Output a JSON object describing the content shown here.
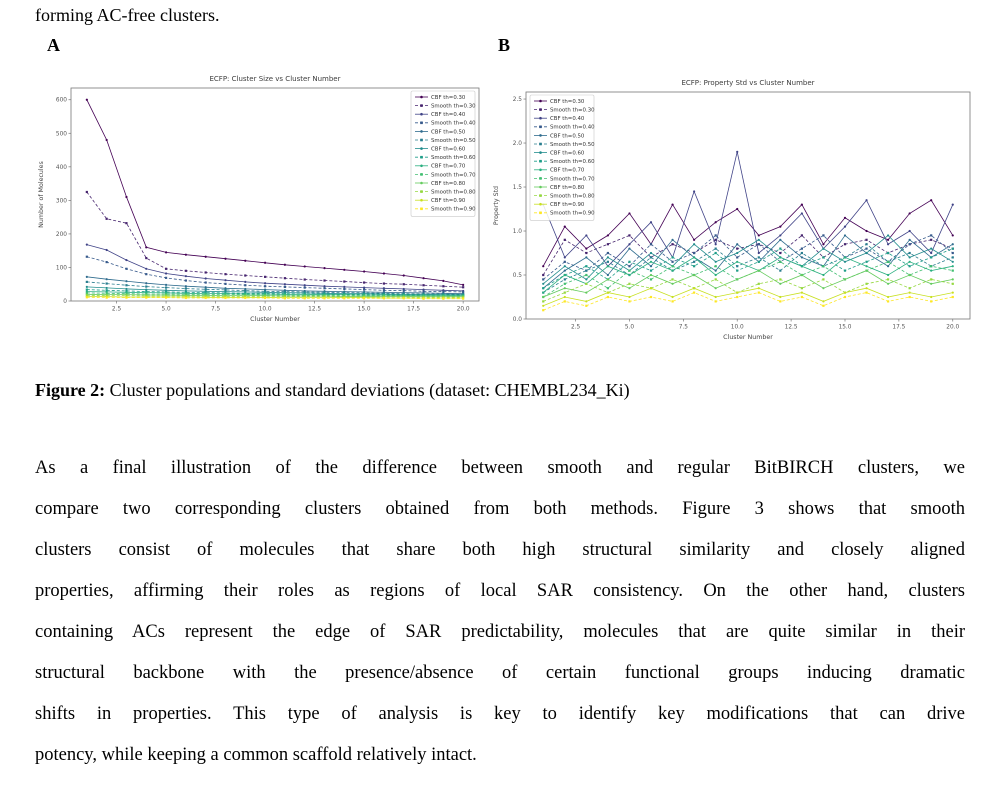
{
  "page": {
    "intro_line": "forming AC-free clusters.",
    "figure": {
      "panel_a_label": "A",
      "panel_b_label": "B",
      "caption_label": "Figure 2:",
      "caption_text": " Cluster populations and standard deviations (dataset: CHEMBL234_Ki)"
    },
    "paragraph_lines": [
      "As a final illustration of the difference between smooth and regular BitBIRCH clusters, we",
      "compare two corresponding clusters obtained from both methods. Figure 3 shows that smooth",
      "clusters consist of molecules that share both high structural similarity and closely aligned",
      "properties, affirming their roles as regions of local SAR consistency. On the other hand, clusters",
      "containing ACs represent the edge of SAR predictability, molecules that are quite similar in their",
      "structural backbone with the presence/absence of certain functional groups inducing dramatic",
      "shifts in properties. This type of analysis is key to identify key modifications that can drive",
      "potency, while keeping a common scaffold relatively intact."
    ]
  },
  "chart_data": [
    {
      "type": "line",
      "title": "ECFP: Cluster Size vs Cluster Number",
      "xlabel": "Cluster Number",
      "ylabel": "Number of Molecules",
      "x": [
        1,
        2,
        3,
        4,
        5,
        6,
        7,
        8,
        9,
        10,
        11,
        12,
        13,
        14,
        15,
        16,
        17,
        18,
        19,
        20
      ],
      "xlim": [
        0.2,
        20.8
      ],
      "ylim": [
        0,
        635
      ],
      "xticks": [
        2.5,
        5,
        7.5,
        10,
        12.5,
        15,
        17.5,
        20
      ],
      "xtick_labels": [
        "2.5",
        "5.0",
        "7.5",
        "10.0",
        "12.5",
        "15.0",
        "17.5",
        "20.0"
      ],
      "yticks": [
        0,
        100,
        200,
        300,
        400,
        500,
        600
      ],
      "ytick_labels": [
        "0",
        "100",
        "200",
        "300",
        "400",
        "500",
        "600"
      ],
      "grid": false,
      "legend_position": "upper-right",
      "series": [
        {
          "name": "CBF th=0.30",
          "color": "#440154",
          "style": "solid",
          "marker": "circle",
          "values": [
            600,
            480,
            310,
            160,
            145,
            138,
            132,
            126,
            120,
            114,
            108,
            103,
            98,
            93,
            88,
            82,
            76,
            68,
            60,
            48
          ]
        },
        {
          "name": "Smooth th=0.30",
          "color": "#46246e",
          "style": "dashed",
          "marker": "square",
          "values": [
            325,
            245,
            232,
            128,
            96,
            90,
            85,
            80,
            76,
            72,
            68,
            64,
            61,
            58,
            55,
            52,
            50,
            47,
            44,
            41
          ]
        },
        {
          "name": "CBF th=0.40",
          "color": "#404387",
          "style": "solid",
          "marker": "circle",
          "values": [
            168,
            152,
            122,
            96,
            82,
            74,
            67,
            62,
            57,
            53,
            50,
            47,
            44,
            42,
            40,
            38,
            36,
            34,
            32,
            30
          ]
        },
        {
          "name": "Smooth th=0.40",
          "color": "#375a8c",
          "style": "dashed",
          "marker": "square",
          "values": [
            132,
            116,
            96,
            80,
            69,
            61,
            55,
            51,
            47,
            44,
            42,
            40,
            38,
            36,
            34,
            32,
            31,
            29,
            28,
            27
          ]
        },
        {
          "name": "CBF th=0.50",
          "color": "#2f6c8e",
          "style": "solid",
          "marker": "circle",
          "values": [
            72,
            65,
            59,
            53,
            48,
            44,
            41,
            38,
            36,
            34,
            32,
            30,
            29,
            28,
            27,
            26,
            25,
            24,
            23,
            22
          ]
        },
        {
          "name": "Smooth th=0.50",
          "color": "#287d8e",
          "style": "dashed",
          "marker": "square",
          "values": [
            57,
            52,
            47,
            43,
            40,
            37,
            35,
            33,
            31,
            29,
            28,
            27,
            26,
            25,
            24,
            23,
            22,
            21,
            21,
            20
          ]
        },
        {
          "name": "CBF th=0.60",
          "color": "#228d8d",
          "style": "solid",
          "marker": "circle",
          "values": [
            42,
            39,
            36,
            34,
            32,
            30,
            29,
            28,
            27,
            26,
            25,
            24,
            23,
            22,
            22,
            21,
            20,
            20,
            19,
            19
          ]
        },
        {
          "name": "Smooth th=0.60",
          "color": "#1f9e89",
          "style": "dashed",
          "marker": "square",
          "values": [
            34,
            32,
            30,
            28,
            27,
            26,
            25,
            24,
            23,
            23,
            22,
            21,
            21,
            20,
            20,
            19,
            19,
            18,
            18,
            17
          ]
        },
        {
          "name": "CBF th=0.70",
          "color": "#29af7f",
          "style": "solid",
          "marker": "circle",
          "values": [
            28,
            27,
            26,
            25,
            24,
            23,
            22,
            22,
            21,
            21,
            20,
            20,
            19,
            19,
            18,
            18,
            17,
            17,
            17,
            16
          ]
        },
        {
          "name": "Smooth th=0.70",
          "color": "#42be71",
          "style": "dashed",
          "marker": "square",
          "values": [
            24,
            23,
            22,
            21,
            21,
            20,
            20,
            19,
            19,
            18,
            18,
            17,
            17,
            17,
            16,
            16,
            16,
            15,
            15,
            15
          ]
        },
        {
          "name": "CBF th=0.80",
          "color": "#65cb5e",
          "style": "solid",
          "marker": "circle",
          "values": [
            20,
            19,
            19,
            18,
            18,
            17,
            17,
            16,
            16,
            16,
            15,
            15,
            15,
            14,
            14,
            14,
            14,
            13,
            13,
            13
          ]
        },
        {
          "name": "Smooth th=0.80",
          "color": "#95d840",
          "style": "dashed",
          "marker": "square",
          "values": [
            17,
            16,
            16,
            15,
            15,
            15,
            14,
            14,
            14,
            13,
            13,
            13,
            13,
            12,
            12,
            12,
            12,
            11,
            11,
            11
          ]
        },
        {
          "name": "CBF th=0.90",
          "color": "#c8e020",
          "style": "solid",
          "marker": "circle",
          "values": [
            13,
            13,
            12,
            12,
            12,
            12,
            11,
            11,
            11,
            11,
            10,
            10,
            10,
            10,
            10,
            9,
            9,
            9,
            9,
            9
          ]
        },
        {
          "name": "Smooth th=0.90",
          "color": "#fde725",
          "style": "dashed",
          "marker": "square",
          "values": [
            11,
            10,
            10,
            10,
            10,
            9,
            9,
            9,
            9,
            9,
            8,
            8,
            8,
            8,
            8,
            8,
            8,
            7,
            7,
            7
          ]
        }
      ]
    },
    {
      "type": "line",
      "title": "ECFP: Property Std vs Cluster Number",
      "xlabel": "Cluster Number",
      "ylabel": "Property Std",
      "x": [
        1,
        2,
        3,
        4,
        5,
        6,
        7,
        8,
        9,
        10,
        11,
        12,
        13,
        14,
        15,
        16,
        17,
        18,
        19,
        20
      ],
      "xlim": [
        0.2,
        20.8
      ],
      "ylim": [
        0,
        2.58
      ],
      "xticks": [
        2.5,
        5,
        7.5,
        10,
        12.5,
        15,
        17.5,
        20
      ],
      "xtick_labels": [
        "2.5",
        "5.0",
        "7.5",
        "10.0",
        "12.5",
        "15.0",
        "17.5",
        "20.0"
      ],
      "yticks": [
        0,
        0.5,
        1,
        1.5,
        2,
        2.5
      ],
      "ytick_labels": [
        "0.0",
        "0.5",
        "1.0",
        "1.5",
        "2.0",
        "2.5"
      ],
      "grid": false,
      "legend_position": "upper-left",
      "series": [
        {
          "name": "CBF th=0.30",
          "color": "#440154",
          "style": "solid",
          "marker": "circle",
          "values": [
            0.6,
            1.05,
            0.8,
            0.95,
            1.2,
            0.85,
            1.3,
            0.9,
            1.1,
            1.25,
            0.95,
            1.05,
            1.3,
            0.85,
            1.15,
            1.0,
            0.9,
            1.2,
            1.35,
            0.95
          ]
        },
        {
          "name": "Smooth th=0.30",
          "color": "#46246e",
          "style": "dashed",
          "marker": "square",
          "values": [
            0.5,
            0.9,
            0.75,
            0.85,
            0.95,
            0.7,
            0.85,
            0.75,
            0.9,
            0.8,
            0.85,
            0.75,
            0.95,
            0.7,
            0.85,
            0.9,
            0.75,
            0.85,
            0.9,
            0.8
          ]
        },
        {
          "name": "CBF th=0.40",
          "color": "#404387",
          "style": "solid",
          "marker": "circle",
          "values": [
            1.3,
            0.7,
            0.95,
            0.6,
            0.85,
            1.1,
            0.7,
            1.45,
            0.85,
            1.9,
            0.75,
            0.95,
            1.2,
            0.8,
            1.05,
            1.35,
            0.85,
            1.0,
            0.75,
            1.3
          ]
        },
        {
          "name": "Smooth th=0.40",
          "color": "#375a8c",
          "style": "dashed",
          "marker": "square",
          "values": [
            0.45,
            0.65,
            0.55,
            0.75,
            0.6,
            0.85,
            0.65,
            0.75,
            0.95,
            0.7,
            0.85,
            0.65,
            0.8,
            0.95,
            0.7,
            0.8,
            0.65,
            0.85,
            0.95,
            0.75
          ]
        },
        {
          "name": "CBF th=0.50",
          "color": "#2f6c8e",
          "style": "solid",
          "marker": "circle",
          "values": [
            0.35,
            0.55,
            0.7,
            0.5,
            0.8,
            0.6,
            0.9,
            0.7,
            0.55,
            0.85,
            0.65,
            0.9,
            0.7,
            0.6,
            0.95,
            0.75,
            0.6,
            0.9,
            0.7,
            0.85
          ]
        },
        {
          "name": "Smooth th=0.50",
          "color": "#287d8e",
          "style": "dashed",
          "marker": "square",
          "values": [
            0.3,
            0.45,
            0.55,
            0.65,
            0.5,
            0.7,
            0.55,
            0.65,
            0.8,
            0.6,
            0.7,
            0.55,
            0.75,
            0.6,
            0.7,
            0.85,
            0.65,
            0.75,
            0.6,
            0.7
          ]
        },
        {
          "name": "CBF th=0.60",
          "color": "#228d8d",
          "style": "solid",
          "marker": "circle",
          "values": [
            0.4,
            0.6,
            0.45,
            0.7,
            0.55,
            0.75,
            0.6,
            0.85,
            0.65,
            0.75,
            0.9,
            0.7,
            0.6,
            0.8,
            0.65,
            0.75,
            0.95,
            0.7,
            0.8,
            0.65
          ]
        },
        {
          "name": "Smooth th=0.60",
          "color": "#1f9e89",
          "style": "dashed",
          "marker": "square",
          "values": [
            0.35,
            0.5,
            0.6,
            0.45,
            0.65,
            0.55,
            0.7,
            0.6,
            0.75,
            0.55,
            0.65,
            0.8,
            0.6,
            0.7,
            0.55,
            0.65,
            0.75,
            0.6,
            0.7,
            0.8
          ]
        },
        {
          "name": "CBF th=0.70",
          "color": "#29af7f",
          "style": "solid",
          "marker": "circle",
          "values": [
            0.3,
            0.5,
            0.4,
            0.6,
            0.5,
            0.65,
            0.55,
            0.7,
            0.5,
            0.65,
            0.55,
            0.7,
            0.6,
            0.5,
            0.7,
            0.6,
            0.5,
            0.65,
            0.55,
            0.6
          ]
        },
        {
          "name": "Smooth th=0.70",
          "color": "#42be71",
          "style": "dashed",
          "marker": "square",
          "values": [
            0.25,
            0.4,
            0.5,
            0.35,
            0.55,
            0.45,
            0.6,
            0.5,
            0.6,
            0.45,
            0.55,
            0.65,
            0.5,
            0.6,
            0.45,
            0.55,
            0.65,
            0.5,
            0.6,
            0.55
          ]
        },
        {
          "name": "CBF th=0.80",
          "color": "#65cb5e",
          "style": "solid",
          "marker": "circle",
          "values": [
            0.25,
            0.35,
            0.3,
            0.45,
            0.35,
            0.5,
            0.4,
            0.5,
            0.35,
            0.45,
            0.55,
            0.4,
            0.5,
            0.35,
            0.45,
            0.55,
            0.4,
            0.5,
            0.4,
            0.45
          ]
        },
        {
          "name": "Smooth th=0.80",
          "color": "#95d840",
          "style": "dashed",
          "marker": "square",
          "values": [
            0.2,
            0.3,
            0.4,
            0.3,
            0.4,
            0.35,
            0.45,
            0.35,
            0.45,
            0.3,
            0.4,
            0.45,
            0.35,
            0.45,
            0.3,
            0.4,
            0.45,
            0.35,
            0.45,
            0.4
          ]
        },
        {
          "name": "CBF th=0.90",
          "color": "#c8e020",
          "style": "solid",
          "marker": "circle",
          "values": [
            0.15,
            0.25,
            0.2,
            0.3,
            0.25,
            0.35,
            0.25,
            0.35,
            0.25,
            0.3,
            0.35,
            0.25,
            0.3,
            0.2,
            0.3,
            0.35,
            0.25,
            0.3,
            0.25,
            0.3
          ]
        },
        {
          "name": "Smooth th=0.90",
          "color": "#fde725",
          "style": "dashed",
          "marker": "square",
          "values": [
            0.1,
            0.2,
            0.15,
            0.25,
            0.2,
            0.25,
            0.2,
            0.3,
            0.2,
            0.25,
            0.3,
            0.2,
            0.25,
            0.15,
            0.25,
            0.3,
            0.2,
            0.25,
            0.2,
            0.25
          ]
        }
      ]
    }
  ]
}
